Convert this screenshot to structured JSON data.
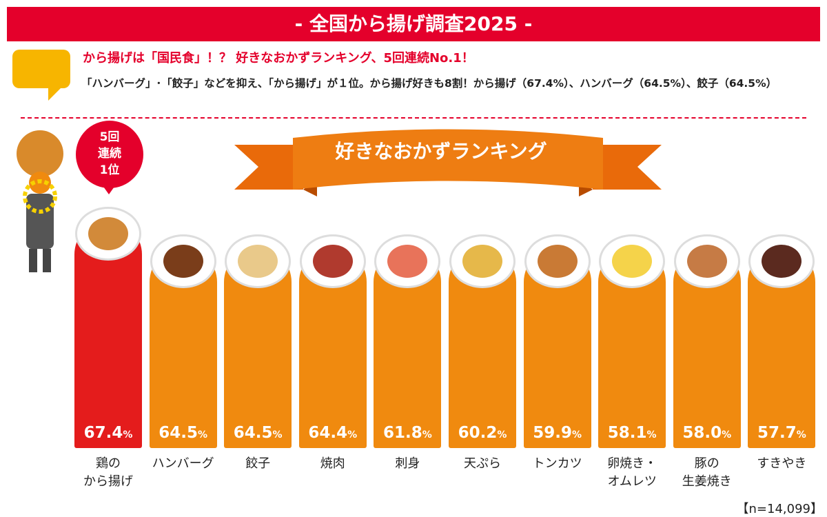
{
  "header": {
    "title": "- 全国から揚げ調査2025 -"
  },
  "headline": "から揚げは「国民食」！？ 好きなおかずランキング、5回連続No.1！",
  "description": "「ハンバーグ」･「餃子」などを抑え、「から揚げ」が１位。から揚げ好きも8割！から揚げ（67.4%）、ハンバーグ（64.5%）、餃子（64.5%）",
  "badge": "5回\n連続\n1位",
  "colors": {
    "header": "#e4002b",
    "top_bar": "#e41c1c",
    "bar": "#f08a0f",
    "ribbon": "#ee7d12",
    "bubble": "#f7b500"
  },
  "chart_data": {
    "type": "bar",
    "title": "好きなおかずランキング",
    "categories": [
      "鶏の\nから揚げ",
      "ハンバーグ",
      "餃子",
      "焼肉",
      "刺身",
      "天ぷら",
      "トンカツ",
      "卵焼き・\nオムレツ",
      "豚の\n生姜焼き",
      "すきやき"
    ],
    "values": [
      67.4,
      64.5,
      64.5,
      64.4,
      61.8,
      60.2,
      59.9,
      58.1,
      58.0,
      57.7
    ],
    "value_labels": [
      "67.4",
      "64.5",
      "64.5",
      "64.4",
      "61.8",
      "60.2",
      "59.9",
      "58.1",
      "58.0",
      "57.7"
    ],
    "unit": "%",
    "note": "【n=14,099】"
  }
}
